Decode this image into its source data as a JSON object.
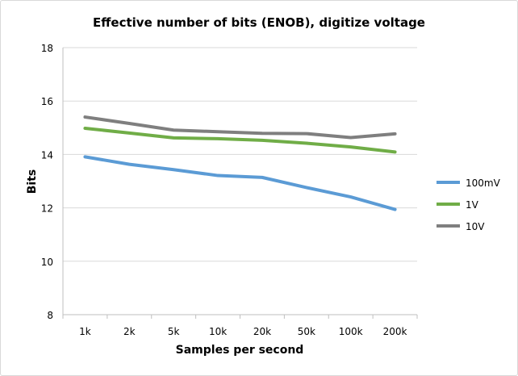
{
  "chart_data": {
    "type": "line",
    "title": "Effective number of bits (ENOB), digitize voltage",
    "xlabel": "Samples per second",
    "ylabel": "Bits",
    "categories": [
      "1k",
      "2k",
      "5k",
      "10k",
      "20k",
      "50k",
      "100k",
      "200k"
    ],
    "ylim": [
      8,
      18
    ],
    "yticks": [
      8,
      10,
      12,
      14,
      16,
      18
    ],
    "grid": true,
    "legend_position": "right",
    "series": [
      {
        "name": "100mV",
        "color": "#5b9bd5",
        "values": [
          13.91,
          13.63,
          13.43,
          13.21,
          13.14,
          12.76,
          12.41,
          11.94
        ]
      },
      {
        "name": "1V",
        "color": "#70ad47",
        "values": [
          14.98,
          14.8,
          14.62,
          14.59,
          14.53,
          14.42,
          14.28,
          14.09
        ]
      },
      {
        "name": "10V",
        "color": "#7f7f7f",
        "values": [
          15.4,
          15.16,
          14.91,
          14.85,
          14.79,
          14.78,
          14.63,
          14.77
        ]
      }
    ]
  }
}
